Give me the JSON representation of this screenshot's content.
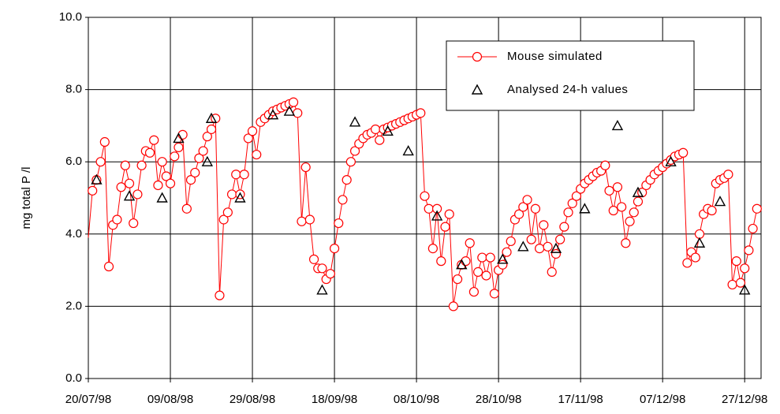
{
  "chart_data": {
    "type": "line",
    "y_label": "mg total P /l",
    "xlim": [
      "1998-07-20",
      "1998-12-31"
    ],
    "xticks": [
      {
        "value": "1998-07-20",
        "label": "20/07/98"
      },
      {
        "value": "1998-08-09",
        "label": "09/08/98"
      },
      {
        "value": "1998-08-29",
        "label": "29/08/98"
      },
      {
        "value": "1998-09-18",
        "label": "18/09/98"
      },
      {
        "value": "1998-10-08",
        "label": "08/10/98"
      },
      {
        "value": "1998-10-28",
        "label": "28/10/98"
      },
      {
        "value": "1998-11-17",
        "label": "17/11/98"
      },
      {
        "value": "1998-12-07",
        "label": "07/12/98"
      },
      {
        "value": "1998-12-27",
        "label": "27/12/98"
      }
    ],
    "ylim": [
      0,
      10
    ],
    "yticks": [
      {
        "value": 0,
        "label": "0.0"
      },
      {
        "value": 2,
        "label": "2.0"
      },
      {
        "value": 4,
        "label": "4.0"
      },
      {
        "value": 6,
        "label": "6.0"
      },
      {
        "value": 8,
        "label": "8.0"
      },
      {
        "value": 10,
        "label": "10.0"
      }
    ],
    "grid": true,
    "legend": "upper right",
    "series": [
      {
        "name": "Mouse simulated",
        "color": "#ff0000",
        "marker": "circle",
        "x": [
          "1998-07-20",
          "1998-07-21",
          "1998-07-22",
          "1998-07-23",
          "1998-07-24",
          "1998-07-25",
          "1998-07-26",
          "1998-07-27",
          "1998-07-28",
          "1998-07-29",
          "1998-07-30",
          "1998-07-31",
          "1998-08-01",
          "1998-08-02",
          "1998-08-03",
          "1998-08-04",
          "1998-08-05",
          "1998-08-06",
          "1998-08-07",
          "1998-08-08",
          "1998-08-09",
          "1998-08-10",
          "1998-08-11",
          "1998-08-12",
          "1998-08-13",
          "1998-08-14",
          "1998-08-15",
          "1998-08-16",
          "1998-08-17",
          "1998-08-18",
          "1998-08-19",
          "1998-08-20",
          "1998-08-21",
          "1998-08-22",
          "1998-08-23",
          "1998-08-24",
          "1998-08-25",
          "1998-08-26",
          "1998-08-27",
          "1998-08-28",
          "1998-08-29",
          "1998-08-30",
          "1998-08-31",
          "1998-09-01",
          "1998-09-02",
          "1998-09-03",
          "1998-09-04",
          "1998-09-05",
          "1998-09-06",
          "1998-09-07",
          "1998-09-08",
          "1998-09-09",
          "1998-09-10",
          "1998-09-11",
          "1998-09-12",
          "1998-09-13",
          "1998-09-14",
          "1998-09-15",
          "1998-09-16",
          "1998-09-17",
          "1998-09-18",
          "1998-09-19",
          "1998-09-20",
          "1998-09-21",
          "1998-09-22",
          "1998-09-23",
          "1998-09-24",
          "1998-09-25",
          "1998-09-26",
          "1998-09-27",
          "1998-09-28",
          "1998-09-29",
          "1998-09-30",
          "1998-10-01",
          "1998-10-02",
          "1998-10-03",
          "1998-10-04",
          "1998-10-05",
          "1998-10-06",
          "1998-10-07",
          "1998-10-08",
          "1998-10-09",
          "1998-10-10",
          "1998-10-11",
          "1998-10-12",
          "1998-10-13",
          "1998-10-14",
          "1998-10-15",
          "1998-10-16",
          "1998-10-17",
          "1998-10-18",
          "1998-10-19",
          "1998-10-20",
          "1998-10-21",
          "1998-10-22",
          "1998-10-23",
          "1998-10-24",
          "1998-10-25",
          "1998-10-26",
          "1998-10-27",
          "1998-10-28",
          "1998-10-29",
          "1998-10-30",
          "1998-10-31",
          "1998-11-01",
          "1998-11-02",
          "1998-11-03",
          "1998-11-04",
          "1998-11-05",
          "1998-11-06",
          "1998-11-07",
          "1998-11-08",
          "1998-11-09",
          "1998-11-10",
          "1998-11-11",
          "1998-11-12",
          "1998-11-13",
          "1998-11-14",
          "1998-11-15",
          "1998-11-16",
          "1998-11-17",
          "1998-11-18",
          "1998-11-19",
          "1998-11-20",
          "1998-11-21",
          "1998-11-22",
          "1998-11-23",
          "1998-11-24",
          "1998-11-25",
          "1998-11-26",
          "1998-11-27",
          "1998-11-28",
          "1998-11-29",
          "1998-11-30",
          "1998-12-01",
          "1998-12-02",
          "1998-12-03",
          "1998-12-04",
          "1998-12-05",
          "1998-12-06",
          "1998-12-07",
          "1998-12-08",
          "1998-12-09",
          "1998-12-10",
          "1998-12-11",
          "1998-12-12",
          "1998-12-13",
          "1998-12-14",
          "1998-12-15",
          "1998-12-16",
          "1998-12-17",
          "1998-12-18",
          "1998-12-19",
          "1998-12-20",
          "1998-12-21",
          "1998-12-22",
          "1998-12-23",
          "1998-12-24",
          "1998-12-25",
          "1998-12-26",
          "1998-12-27",
          "1998-12-28",
          "1998-12-29",
          "1998-12-30"
        ],
        "values": [
          3.9,
          5.2,
          5.5,
          6.0,
          6.55,
          3.1,
          4.25,
          4.4,
          5.3,
          5.9,
          5.4,
          4.3,
          5.1,
          5.9,
          6.3,
          6.25,
          6.6,
          5.35,
          6.0,
          5.6,
          5.4,
          6.15,
          6.4,
          6.75,
          4.7,
          5.5,
          5.7,
          6.1,
          6.3,
          6.7,
          6.9,
          7.2,
          2.3,
          4.4,
          4.6,
          5.1,
          5.65,
          5.1,
          5.65,
          6.65,
          6.85,
          6.2,
          7.1,
          7.2,
          7.3,
          7.4,
          7.45,
          7.5,
          7.55,
          7.6,
          7.65,
          7.35,
          4.35,
          5.85,
          4.4,
          3.3,
          3.05,
          3.05,
          2.75,
          2.9,
          3.6,
          4.3,
          4.95,
          5.5,
          6.0,
          6.3,
          6.5,
          6.65,
          6.75,
          6.8,
          6.9,
          6.6,
          6.9,
          6.95,
          7.0,
          7.05,
          7.1,
          7.15,
          7.2,
          7.25,
          7.3,
          7.35,
          5.05,
          4.7,
          3.6,
          4.7,
          3.25,
          4.2,
          4.55,
          2.0,
          2.75,
          3.15,
          3.25,
          3.75,
          2.4,
          2.95,
          3.35,
          2.85,
          3.35,
          2.35,
          3.0,
          3.15,
          3.5,
          3.8,
          4.4,
          4.55,
          4.75,
          4.95,
          3.85,
          4.7,
          3.6,
          4.25,
          3.65,
          2.95,
          3.45,
          3.85,
          4.2,
          4.6,
          4.85,
          5.05,
          5.25,
          5.4,
          5.5,
          5.6,
          5.7,
          5.75,
          5.9,
          5.2,
          4.65,
          5.3,
          4.75,
          3.75,
          4.35,
          4.6,
          4.9,
          5.15,
          5.35,
          5.5,
          5.65,
          5.75,
          5.85,
          5.95,
          6.05,
          6.15,
          6.2,
          6.25,
          3.2,
          3.5,
          3.35,
          4.0,
          4.55,
          4.7,
          4.65,
          5.4,
          5.5,
          5.55,
          5.65,
          2.6,
          3.25,
          2.65,
          3.05,
          3.55,
          4.15,
          4.7
        ]
      },
      {
        "name": "Analysed 24-h values",
        "color": "#000000",
        "marker": "triangle",
        "x": [
          "1998-07-22",
          "1998-07-30",
          "1998-08-07",
          "1998-08-11",
          "1998-08-18",
          "1998-08-19",
          "1998-08-26",
          "1998-09-03",
          "1998-09-07",
          "1998-09-15",
          "1998-09-23",
          "1998-10-01",
          "1998-10-06",
          "1998-10-13",
          "1998-10-19",
          "1998-10-29",
          "1998-11-03",
          "1998-11-11",
          "1998-11-18",
          "1998-11-26",
          "1998-12-01",
          "1998-12-09",
          "1998-12-16",
          "1998-12-21",
          "1998-12-27"
        ],
        "values": [
          5.5,
          5.05,
          5.0,
          6.65,
          6.0,
          7.2,
          5.0,
          7.3,
          7.4,
          2.45,
          7.1,
          6.85,
          6.3,
          4.5,
          3.15,
          3.3,
          3.65,
          3.6,
          4.7,
          7.0,
          5.15,
          6.0,
          3.75,
          4.9,
          2.45
        ]
      }
    ]
  }
}
